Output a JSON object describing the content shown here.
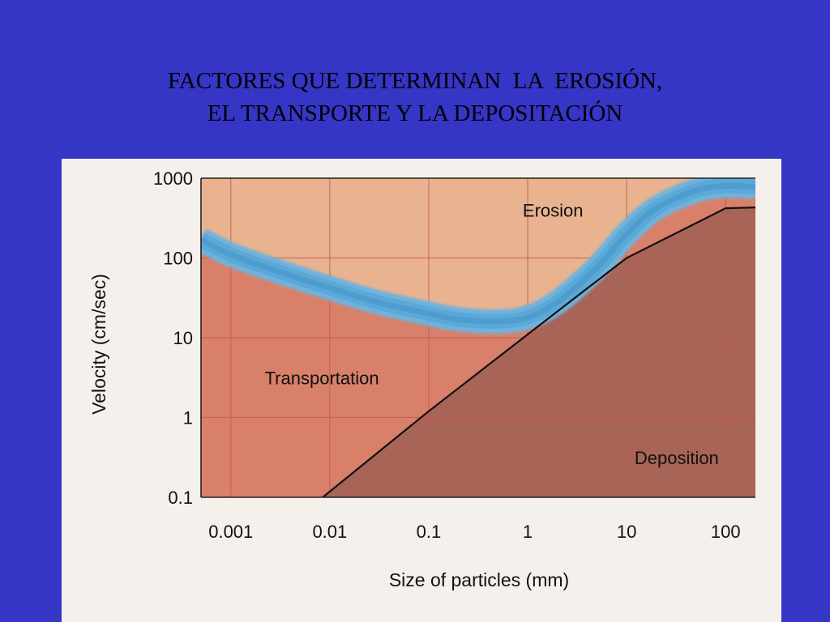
{
  "slide": {
    "title_line1": "FACTORES QUE DETERMINAN  LA  EROSIÓN,",
    "title_line2": "EL TRANSPORTE Y LA DEPOSITACIÓN",
    "background_color": "#3535c6"
  },
  "chart_data": {
    "type": "area",
    "title": "",
    "xlabel": "Size of particles (mm)",
    "ylabel": "Velocity (cm/sec)",
    "x_scale": "log",
    "y_scale": "log",
    "xlim": [
      0.0005,
      200
    ],
    "ylim": [
      0.1,
      1000
    ],
    "x_ticks": [
      "0.001",
      "0.01",
      "0.1",
      "1",
      "10",
      "100"
    ],
    "y_ticks": [
      "1000",
      "100",
      "10",
      "1",
      "0.1"
    ],
    "grid": true,
    "regions": [
      {
        "label": "Erosion",
        "color": "#e9b38f"
      },
      {
        "label": "Transportation",
        "color": "#d9806a"
      },
      {
        "label": "Deposition",
        "color": "#a86457"
      }
    ],
    "series": [
      {
        "role": "erosion-velocity-band",
        "color": "#5aa9d8",
        "x": [
          0.0005,
          0.001,
          0.003,
          0.01,
          0.03,
          0.1,
          0.2,
          0.5,
          1,
          2,
          5,
          10,
          20,
          50,
          100,
          200
        ],
        "y": [
          170,
          110,
          68,
          42,
          28,
          20,
          17,
          16,
          18,
          28,
          75,
          200,
          420,
          700,
          800,
          780
        ]
      },
      {
        "role": "settling-velocity-line",
        "color": "#111111",
        "x": [
          0.0085,
          0.1,
          1,
          10,
          100,
          200
        ],
        "y": [
          0.1,
          1.2,
          11,
          100,
          420,
          430
        ]
      }
    ]
  }
}
